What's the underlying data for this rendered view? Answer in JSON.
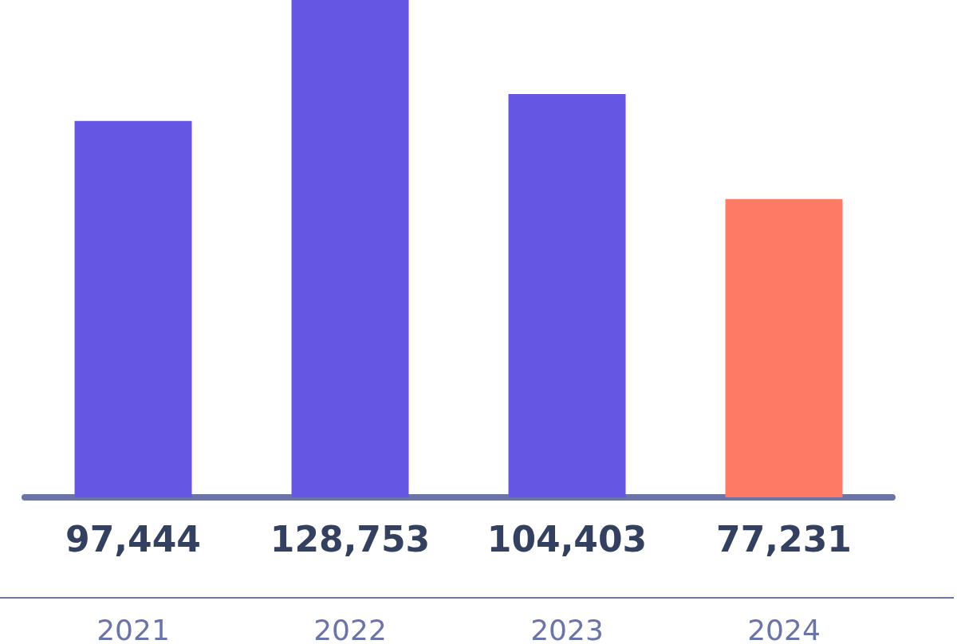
{
  "chart_data": {
    "type": "bar",
    "categories": [
      "2021",
      "2022",
      "2023",
      "2024"
    ],
    "values": [
      97444,
      128753,
      104403,
      77231
    ],
    "colors": [
      "#6557e3",
      "#6557e3",
      "#6557e3",
      "#ff7a65"
    ],
    "value_labels": [
      "97,444",
      "128,753",
      "104,403",
      "77,231"
    ]
  }
}
